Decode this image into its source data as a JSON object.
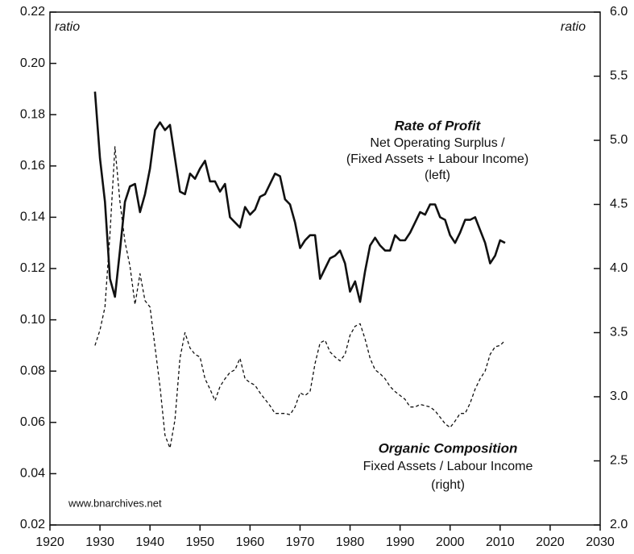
{
  "chart_data": {
    "type": "line",
    "y_label": "ratio",
    "y2_label": "ratio",
    "source": "www.bnarchives.net",
    "x": [
      1929,
      1930,
      1931,
      1932,
      1933,
      1934,
      1935,
      1936,
      1937,
      1938,
      1939,
      1940,
      1941,
      1942,
      1943,
      1944,
      1945,
      1946,
      1947,
      1948,
      1949,
      1950,
      1951,
      1952,
      1953,
      1954,
      1955,
      1956,
      1957,
      1958,
      1959,
      1960,
      1961,
      1962,
      1963,
      1964,
      1965,
      1966,
      1967,
      1968,
      1969,
      1970,
      1971,
      1972,
      1973,
      1974,
      1975,
      1976,
      1977,
      1978,
      1979,
      1980,
      1981,
      1982,
      1983,
      1984,
      1985,
      1986,
      1987,
      1988,
      1989,
      1990,
      1991,
      1992,
      1993,
      1994,
      1995,
      1996,
      1997,
      1998,
      1999,
      2000,
      2001,
      2002,
      2003,
      2004,
      2005,
      2006,
      2007,
      2008,
      2009,
      2010,
      2011
    ],
    "series": [
      {
        "name": "Rate of Profit",
        "description": [
          "Net Operating Surplus /",
          "(Fixed Assets + Labour Income)",
          "(left)"
        ],
        "color": "#111111",
        "dash": "solid",
        "axis": "y",
        "values": [
          0.189,
          0.163,
          0.146,
          0.116,
          0.109,
          0.127,
          0.146,
          0.152,
          0.153,
          0.142,
          0.149,
          0.159,
          0.174,
          0.177,
          0.174,
          0.176,
          0.163,
          0.15,
          0.149,
          0.157,
          0.155,
          0.159,
          0.162,
          0.154,
          0.154,
          0.15,
          0.153,
          0.14,
          0.138,
          0.136,
          0.144,
          0.141,
          0.143,
          0.148,
          0.149,
          0.153,
          0.157,
          0.156,
          0.147,
          0.145,
          0.138,
          0.128,
          0.131,
          0.133,
          0.133,
          0.116,
          0.12,
          0.124,
          0.125,
          0.127,
          0.122,
          0.111,
          0.115,
          0.107,
          0.119,
          0.129,
          0.132,
          0.129,
          0.127,
          0.127,
          0.133,
          0.131,
          0.131,
          0.134,
          0.138,
          0.142,
          0.141,
          0.145,
          0.145,
          0.14,
          0.139,
          0.133,
          0.13,
          0.134,
          0.139,
          0.139,
          0.14,
          0.135,
          0.13,
          0.122,
          0.125,
          0.131,
          0.13
        ]
      },
      {
        "name": "Organic Composition",
        "description": [
          "Fixed Assets / Labour Income",
          "(right)"
        ],
        "color": "#111111",
        "dash": "dashed",
        "axis": "y2",
        "values": [
          3.4,
          3.52,
          3.7,
          4.27,
          4.95,
          4.52,
          4.21,
          4.02,
          3.72,
          3.96,
          3.75,
          3.7,
          3.39,
          3.08,
          2.7,
          2.6,
          2.82,
          3.3,
          3.5,
          3.38,
          3.33,
          3.31,
          3.14,
          3.06,
          2.97,
          3.08,
          3.14,
          3.19,
          3.21,
          3.3,
          3.14,
          3.11,
          3.09,
          3.03,
          2.98,
          2.93,
          2.87,
          2.87,
          2.87,
          2.86,
          2.92,
          3.03,
          3.01,
          3.04,
          3.26,
          3.42,
          3.44,
          3.35,
          3.31,
          3.28,
          3.33,
          3.48,
          3.55,
          3.57,
          3.45,
          3.3,
          3.21,
          3.18,
          3.14,
          3.08,
          3.04,
          3.01,
          2.98,
          2.92,
          2.92,
          2.94,
          2.93,
          2.92,
          2.89,
          2.84,
          2.79,
          2.76,
          2.81,
          2.87,
          2.87,
          2.95,
          3.06,
          3.14,
          3.2,
          3.33,
          3.39,
          3.4,
          3.44
        ]
      }
    ],
    "xlim": [
      1920,
      2030
    ],
    "xticks": [
      1920,
      1930,
      1940,
      1950,
      1960,
      1970,
      1980,
      1990,
      2000,
      2010,
      2020,
      2030
    ],
    "ylim": [
      0.02,
      0.22
    ],
    "yticks": [
      0.02,
      0.04,
      0.06,
      0.08,
      {
        "value": 0.1,
        "label": "0.10"
      },
      0.12,
      0.14,
      0.16,
      0.18,
      {
        "value": 0.2,
        "label": "0.20"
      },
      0.22
    ],
    "y2lim": [
      2.0,
      6.0
    ],
    "y2ticks": [
      {
        "value": 2,
        "label": "2.0"
      },
      2.5,
      {
        "value": 3,
        "label": "3.0"
      },
      3.5,
      {
        "value": 4,
        "label": "4.0"
      },
      4.5,
      {
        "value": 5,
        "label": "5.0"
      },
      5.5,
      {
        "value": 6,
        "label": "6.0"
      }
    ],
    "grid": false
  }
}
